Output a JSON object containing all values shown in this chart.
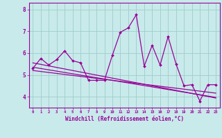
{
  "x": [
    0,
    1,
    2,
    3,
    4,
    5,
    6,
    7,
    8,
    9,
    10,
    11,
    12,
    13,
    14,
    15,
    16,
    17,
    18,
    19,
    20,
    21,
    22,
    23
  ],
  "y_main": [
    5.3,
    5.75,
    5.45,
    5.7,
    6.1,
    5.65,
    5.55,
    4.75,
    4.75,
    4.75,
    5.9,
    6.95,
    7.15,
    7.75,
    5.4,
    6.35,
    5.45,
    6.75,
    5.5,
    4.5,
    4.55,
    3.8,
    4.55,
    4.55
  ],
  "y_trend1": [
    5.55,
    5.48,
    5.41,
    5.34,
    5.27,
    5.2,
    5.13,
    5.06,
    4.99,
    4.92,
    4.85,
    4.78,
    4.71,
    4.64,
    4.57,
    4.5,
    4.43,
    4.36,
    4.29,
    4.22,
    4.15,
    4.08,
    4.01,
    3.94
  ],
  "y_trend2": [
    5.35,
    5.29,
    5.23,
    5.17,
    5.11,
    5.05,
    4.99,
    4.93,
    4.87,
    4.81,
    4.75,
    4.69,
    4.63,
    4.57,
    4.51,
    4.45,
    4.39,
    4.33,
    4.27,
    4.21,
    4.15,
    4.09,
    4.03,
    3.97
  ],
  "y_trend3": [
    5.2,
    5.155,
    5.11,
    5.065,
    5.02,
    4.975,
    4.93,
    4.885,
    4.84,
    4.795,
    4.75,
    4.705,
    4.66,
    4.615,
    4.57,
    4.525,
    4.48,
    4.435,
    4.39,
    4.345,
    4.3,
    4.255,
    4.21,
    4.165
  ],
  "line_color": "#990099",
  "bg_color": "#c8eaea",
  "grid_color": "#a0cccc",
  "xlabel": "Windchill (Refroidissement éolien,°C)",
  "ylim": [
    3.5,
    8.3
  ],
  "xlim": [
    -0.5,
    23.5
  ],
  "yticks": [
    4,
    5,
    6,
    7,
    8
  ],
  "xticks": [
    0,
    1,
    2,
    3,
    4,
    5,
    6,
    7,
    8,
    9,
    10,
    11,
    12,
    13,
    14,
    15,
    16,
    17,
    18,
    19,
    20,
    21,
    22,
    23
  ]
}
